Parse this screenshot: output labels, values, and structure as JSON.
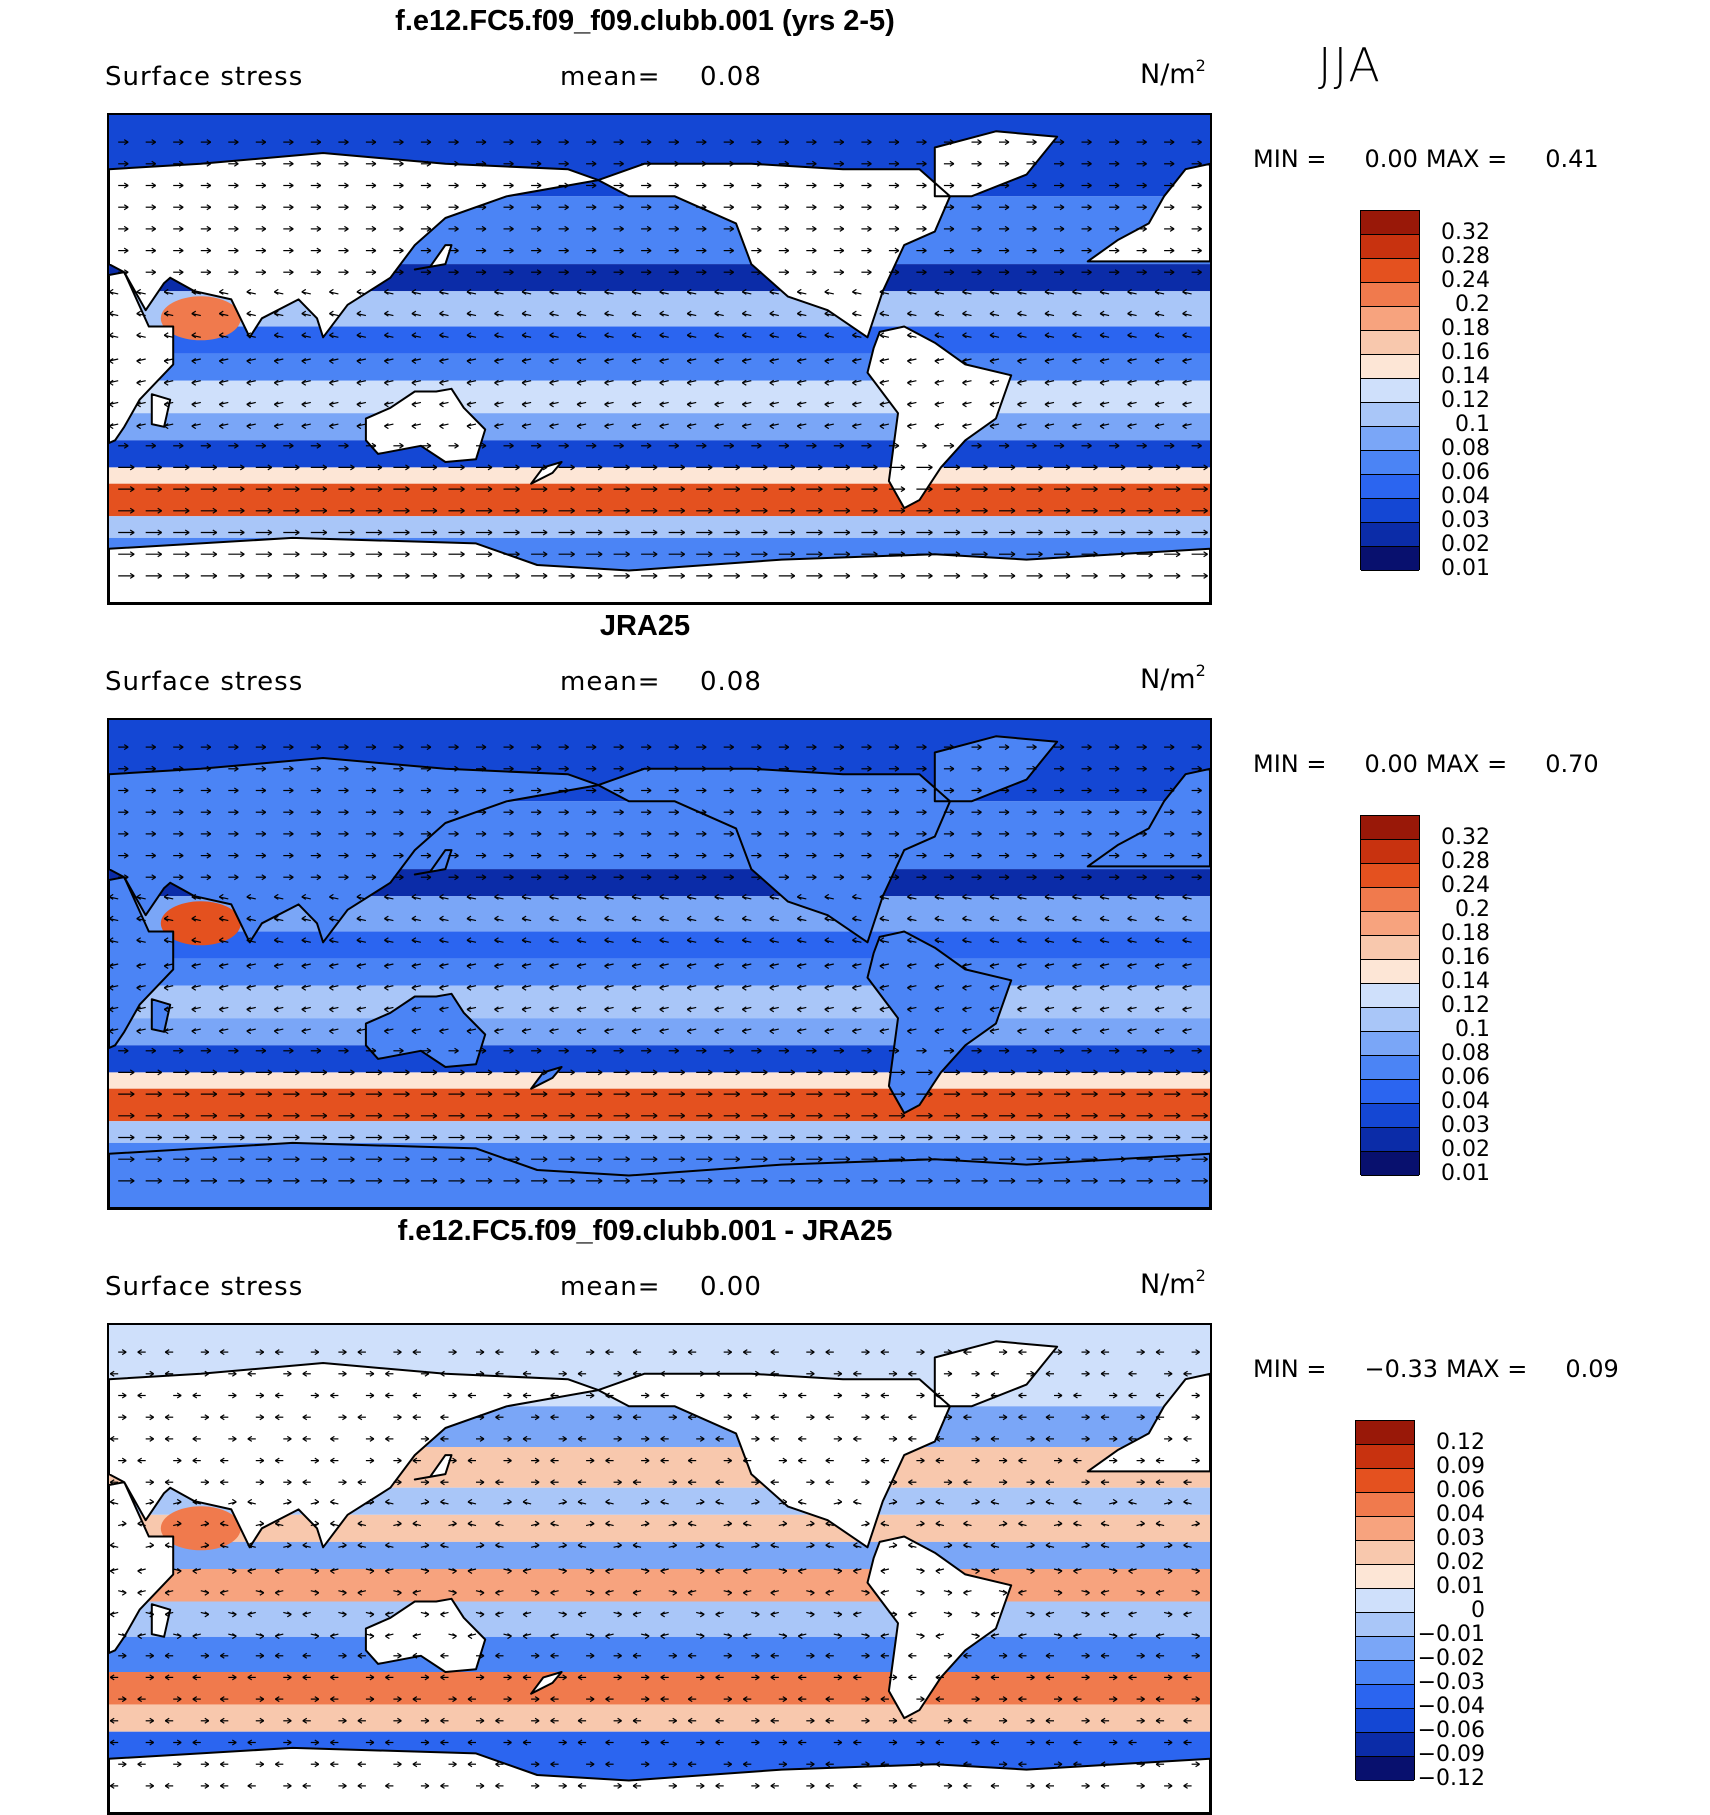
{
  "figure": {
    "season": "JJA",
    "units_label": "N/m",
    "units_power": "2"
  },
  "colors": {
    "levels_abs": [
      "#08106e",
      "#0b2ca8",
      "#1447d4",
      "#2b65f0",
      "#4b84f5",
      "#7aa6f7",
      "#a9c6f8",
      "#cfe0fb",
      "#fde6d6",
      "#f8c8ad",
      "#f7a37e",
      "#f07a4d",
      "#e4511f",
      "#c8320f",
      "#991808"
    ],
    "levels_diff": [
      "#08106e",
      "#0b2ca8",
      "#1447d4",
      "#2b65f0",
      "#4b84f5",
      "#7aa6f7",
      "#a9c6f8",
      "#cfe0fb",
      "#fde6d6",
      "#f8c8ad",
      "#f7a37e",
      "#f07a4d",
      "#e4511f",
      "#c8320f",
      "#991808"
    ]
  },
  "chart_data": [
    {
      "type": "heatmap",
      "title": "f.e12.FC5.f09_f09.clubb.001 (yrs 2-5)",
      "variable": "Surface stress",
      "mean_label": "mean=",
      "mean": "0.08",
      "units": "N/m2",
      "min_label": "MIN =",
      "min": "0.00",
      "max_label": "MAX =",
      "max": "0.41",
      "colorbar_ticks": [
        "0.32",
        "0.28",
        "0.24",
        "0.2",
        "0.18",
        "0.16",
        "0.14",
        "0.12",
        "0.1",
        "0.08",
        "0.06",
        "0.04",
        "0.03",
        "0.02",
        "0.01"
      ],
      "fields": {
        "southern_ocean_jet": 0.22,
        "tropical_easterlies": 0.04,
        "subtropical_trades": 0.12,
        "arabian_sea": 0.2
      }
    },
    {
      "type": "heatmap",
      "title": "JRA25",
      "variable": "Surface stress",
      "mean_label": "mean=",
      "mean": "0.08",
      "units": "N/m2",
      "min_label": "MIN =",
      "min": "0.00",
      "max_label": "MAX =",
      "max": "0.70",
      "colorbar_ticks": [
        "0.32",
        "0.28",
        "0.24",
        "0.2",
        "0.18",
        "0.16",
        "0.14",
        "0.12",
        "0.1",
        "0.08",
        "0.06",
        "0.04",
        "0.03",
        "0.02",
        "0.01"
      ],
      "fields": {
        "southern_ocean_jet": 0.24,
        "tropical_easterlies": 0.04,
        "subtropical_trades": 0.1,
        "arabian_sea": 0.24
      }
    },
    {
      "type": "heatmap",
      "title": "f.e12.FC5.f09_f09.clubb.001 - JRA25",
      "variable": "Surface stress",
      "mean_label": "mean=",
      "mean": "0.00",
      "units": "N/m2",
      "min_label": "MIN =",
      "min": "−0.33",
      "max_label": "MAX =",
      "max": "0.09",
      "colorbar_ticks": [
        "0.12",
        "0.09",
        "0.06",
        "0.04",
        "0.03",
        "0.02",
        "0.01",
        "0",
        "−0.01",
        "−0.02",
        "−0.03",
        "−0.04",
        "−0.06",
        "−0.09",
        "−0.12"
      ],
      "fields": {
        "southern_ocean_jet": 0.04,
        "tropical_easterlies": 0.02,
        "subtropical_trades": -0.02,
        "arabian_sea": 0.04
      }
    }
  ]
}
